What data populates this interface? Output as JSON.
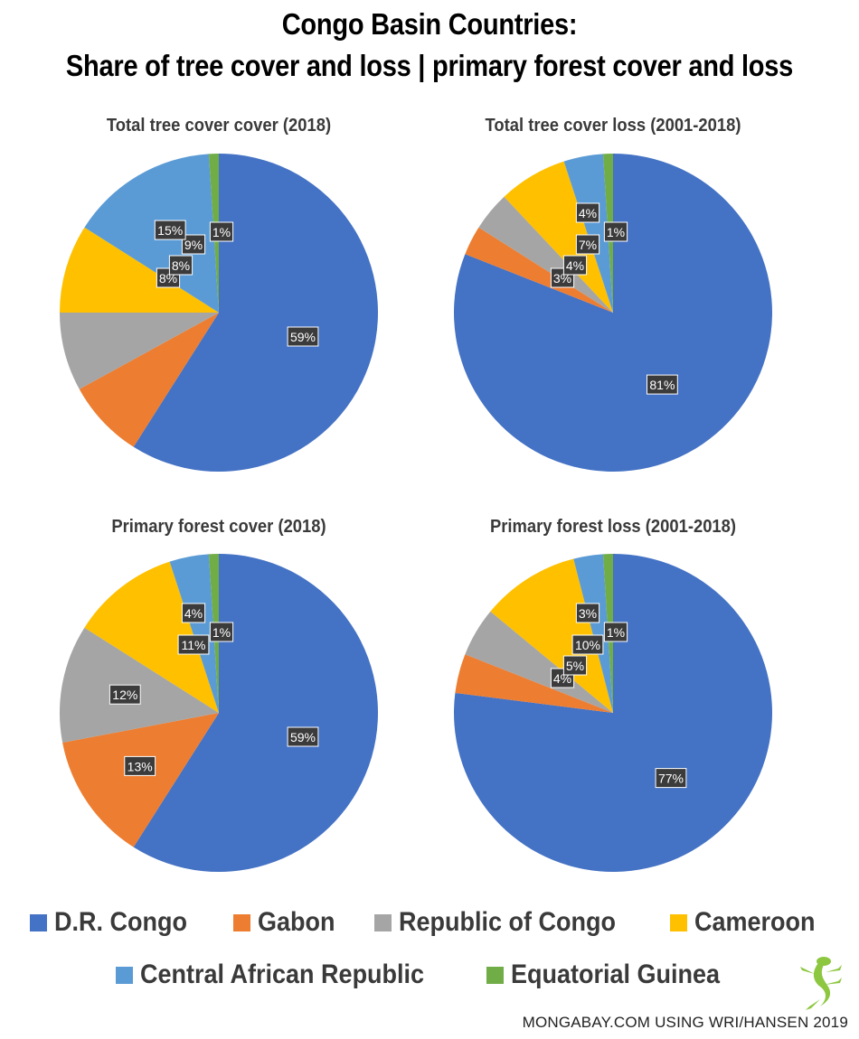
{
  "title_lines": [
    "Congo Basin Countries:",
    "Share of tree cover and loss | primary forest cover and loss"
  ],
  "credit": "MONGABAY.COM USING WRI/HANSEN 2019",
  "legend": [
    {
      "name": "D.R. Congo",
      "color": "#4472C4"
    },
    {
      "name": "Gabon",
      "color": "#ED7D31"
    },
    {
      "name": "Republic of Congo",
      "color": "#A5A5A5"
    },
    {
      "name": "Cameroon",
      "color": "#FFC000"
    },
    {
      "name": "Central African Republic",
      "color": "#5B9BD5"
    },
    {
      "name": "Equatorial Guinea",
      "color": "#70AD47"
    }
  ],
  "chart_data": [
    {
      "type": "pie",
      "title": "Total tree cover cover (2018)",
      "categories": [
        "D.R. Congo",
        "Gabon",
        "Republic of Congo",
        "Cameroon",
        "Central African Republic",
        "Equatorial Guinea"
      ],
      "values": [
        59,
        8,
        8,
        9,
        15,
        1
      ],
      "labels": [
        "59%",
        "8%",
        "8%",
        "9%",
        "15%",
        "1%"
      ]
    },
    {
      "type": "pie",
      "title": "Total tree cover loss (2001-2018)",
      "categories": [
        "D.R. Congo",
        "Gabon",
        "Republic of Congo",
        "Cameroon",
        "Central African Republic",
        "Equatorial Guinea"
      ],
      "values": [
        81,
        3,
        4,
        7,
        4,
        1
      ],
      "labels": [
        "81%",
        "3%",
        "4%",
        "7%",
        "4%",
        "1%"
      ]
    },
    {
      "type": "pie",
      "title": "Primary forest cover (2018)",
      "categories": [
        "D.R. Congo",
        "Gabon",
        "Republic of Congo",
        "Cameroon",
        "Central African Republic",
        "Equatorial Guinea"
      ],
      "values": [
        59,
        13,
        12,
        11,
        4,
        1
      ],
      "labels": [
        "59%",
        "13%",
        "12%",
        "11%",
        "4%",
        "1%"
      ]
    },
    {
      "type": "pie",
      "title": "Primary forest loss (2001-2018)",
      "categories": [
        "D.R. Congo",
        "Gabon",
        "Republic of Congo",
        "Cameroon",
        "Central African Republic",
        "Equatorial Guinea"
      ],
      "values": [
        77,
        4,
        5,
        10,
        3,
        1
      ],
      "labels": [
        "77%",
        "4%",
        "5%",
        "10%",
        "3%",
        "1%"
      ]
    }
  ]
}
